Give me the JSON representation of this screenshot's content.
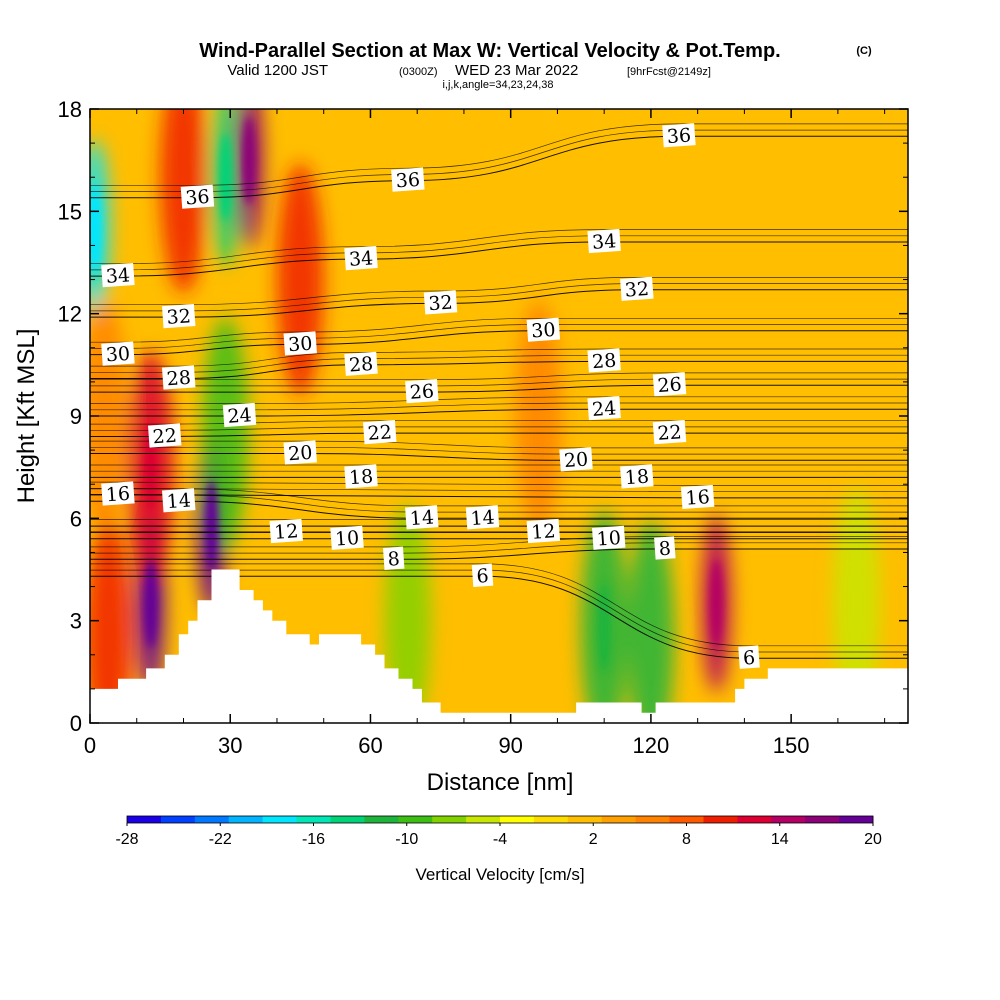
{
  "header": {
    "title": "Wind-Parallel Section at Max W: Vertical Velocity & Pot.Temp.",
    "title_mark": "(C)",
    "valid_prefix": "Valid 1200 JST",
    "valid_zulu": "(0300Z)",
    "valid_date": "WED 23 Mar 2022",
    "forecast": "[9hrFcst@2149z]",
    "indices": "i,j,k,angle=34,23,24,38"
  },
  "chart_data": {
    "type": "heatmap",
    "xlabel": "Distance [nm]",
    "ylabel": "Height [Kft MSL]",
    "xlim": [
      0,
      175
    ],
    "ylim": [
      0,
      18
    ],
    "x_ticks": [
      0,
      30,
      60,
      90,
      120,
      150
    ],
    "y_ticks": [
      0,
      3,
      6,
      9,
      12,
      15,
      18
    ],
    "colorbar": {
      "label": "Vertical Velocity [cm/s]",
      "tick_labels": [
        "-28",
        "-22",
        "-16",
        "-10",
        "-4",
        "2",
        "8",
        "14",
        "20"
      ],
      "colors": [
        "#1a00e6",
        "#0040ff",
        "#0078ff",
        "#00b4ff",
        "#00e6ff",
        "#00e6b4",
        "#00d278",
        "#1eb43c",
        "#3cbe14",
        "#82d200",
        "#c8e600",
        "#ffff00",
        "#ffdc00",
        "#ffbe00",
        "#ffa000",
        "#ff8200",
        "#ff5a00",
        "#f01e00",
        "#dc0032",
        "#b40064",
        "#8c0078",
        "#640096"
      ]
    },
    "vertical_velocity_cells": [
      {
        "x": 1,
        "y": 14.5,
        "w": -18
      },
      {
        "x": 3,
        "y": 9,
        "w": 6
      },
      {
        "x": 4,
        "y": 2.5,
        "w": 10
      },
      {
        "x": 13,
        "y": 3.5,
        "w": 18
      },
      {
        "x": 13,
        "y": 7.5,
        "w": 12
      },
      {
        "x": 20,
        "y": 16,
        "w": 10
      },
      {
        "x": 26,
        "y": 5.8,
        "w": 20
      },
      {
        "x": 29,
        "y": 16,
        "w": -14
      },
      {
        "x": 29,
        "y": 8.5,
        "w": -10
      },
      {
        "x": 34,
        "y": 16.5,
        "w": 16
      },
      {
        "x": 45,
        "y": 13,
        "w": 10
      },
      {
        "x": 68,
        "y": 3,
        "w": -8
      },
      {
        "x": 96,
        "y": 9,
        "w": 5
      },
      {
        "x": 110,
        "y": 2.8,
        "w": -12
      },
      {
        "x": 120,
        "y": 2.5,
        "w": -11
      },
      {
        "x": 134,
        "y": 3.5,
        "w": 14
      },
      {
        "x": 164,
        "y": 3.5,
        "w": -6
      }
    ],
    "potential_temperature_contours": [
      {
        "label": "36",
        "x": 23,
        "y": 15.4
      },
      {
        "label": "36",
        "x": 68,
        "y": 15.9
      },
      {
        "label": "36",
        "x": 126,
        "y": 17.2
      },
      {
        "label": "34",
        "x": 6,
        "y": 13.1
      },
      {
        "label": "34",
        "x": 58,
        "y": 13.6
      },
      {
        "label": "34",
        "x": 110,
        "y": 14.1
      },
      {
        "label": "32",
        "x": 19,
        "y": 11.9
      },
      {
        "label": "32",
        "x": 75,
        "y": 12.3
      },
      {
        "label": "32",
        "x": 117,
        "y": 12.7
      },
      {
        "label": "30",
        "x": 6,
        "y": 10.8
      },
      {
        "label": "30",
        "x": 45,
        "y": 11.1
      },
      {
        "label": "30",
        "x": 97,
        "y": 11.5
      },
      {
        "label": "28",
        "x": 19,
        "y": 10.1
      },
      {
        "label": "28",
        "x": 58,
        "y": 10.5
      },
      {
        "label": "28",
        "x": 110,
        "y": 10.6
      },
      {
        "label": "26",
        "x": 71,
        "y": 9.7
      },
      {
        "label": "26",
        "x": 124,
        "y": 9.9
      },
      {
        "label": "24",
        "x": 32,
        "y": 9.0
      },
      {
        "label": "24",
        "x": 110,
        "y": 9.2
      },
      {
        "label": "22",
        "x": 16,
        "y": 8.4
      },
      {
        "label": "22",
        "x": 62,
        "y": 8.5
      },
      {
        "label": "22",
        "x": 124,
        "y": 8.5
      },
      {
        "label": "20",
        "x": 45,
        "y": 7.9
      },
      {
        "label": "20",
        "x": 104,
        "y": 7.7
      },
      {
        "label": "18",
        "x": 58,
        "y": 7.2
      },
      {
        "label": "18",
        "x": 117,
        "y": 7.2
      },
      {
        "label": "16",
        "x": 6,
        "y": 6.7
      },
      {
        "label": "16",
        "x": 130,
        "y": 6.6
      },
      {
        "label": "14",
        "x": 19,
        "y": 6.5
      },
      {
        "label": "14",
        "x": 71,
        "y": 6.0
      },
      {
        "label": "14",
        "x": 84,
        "y": 6.0
      },
      {
        "label": "12",
        "x": 42,
        "y": 5.6
      },
      {
        "label": "12",
        "x": 97,
        "y": 5.6
      },
      {
        "label": "10",
        "x": 55,
        "y": 5.4
      },
      {
        "label": "10",
        "x": 111,
        "y": 5.4
      },
      {
        "label": "8",
        "x": 65,
        "y": 4.8
      },
      {
        "label": "8",
        "x": 123,
        "y": 5.1
      },
      {
        "label": "6",
        "x": 84,
        "y": 4.3
      },
      {
        "label": "6",
        "x": 141,
        "y": 1.9
      }
    ],
    "terrain": [
      [
        0,
        1.0
      ],
      [
        6,
        1.0
      ],
      [
        6,
        1.3
      ],
      [
        12,
        1.3
      ],
      [
        12,
        1.6
      ],
      [
        16,
        1.6
      ],
      [
        16,
        2.0
      ],
      [
        19,
        2.0
      ],
      [
        19,
        2.6
      ],
      [
        21,
        2.6
      ],
      [
        21,
        3.0
      ],
      [
        23,
        3.0
      ],
      [
        23,
        3.6
      ],
      [
        26,
        3.6
      ],
      [
        26,
        4.5
      ],
      [
        32,
        4.5
      ],
      [
        32,
        3.9
      ],
      [
        35,
        3.9
      ],
      [
        35,
        3.6
      ],
      [
        37,
        3.6
      ],
      [
        37,
        3.3
      ],
      [
        39,
        3.3
      ],
      [
        39,
        3.0
      ],
      [
        42,
        3.0
      ],
      [
        42,
        2.6
      ],
      [
        47,
        2.6
      ],
      [
        47,
        2.3
      ],
      [
        49,
        2.3
      ],
      [
        49,
        2.6
      ],
      [
        58,
        2.6
      ],
      [
        58,
        2.3
      ],
      [
        61,
        2.3
      ],
      [
        61,
        2.0
      ],
      [
        63,
        2.0
      ],
      [
        63,
        1.6
      ],
      [
        66,
        1.6
      ],
      [
        66,
        1.3
      ],
      [
        69,
        1.3
      ],
      [
        69,
        1.0
      ],
      [
        71,
        1.0
      ],
      [
        71,
        0.6
      ],
      [
        75,
        0.6
      ],
      [
        75,
        0.3
      ],
      [
        104,
        0.3
      ],
      [
        104,
        0.6
      ],
      [
        118,
        0.6
      ],
      [
        118,
        0.3
      ],
      [
        121,
        0.3
      ],
      [
        121,
        0.6
      ],
      [
        138,
        0.6
      ],
      [
        138,
        1.0
      ],
      [
        140,
        1.0
      ],
      [
        140,
        1.3
      ],
      [
        145,
        1.3
      ],
      [
        145,
        1.6
      ],
      [
        175,
        1.6
      ]
    ]
  }
}
